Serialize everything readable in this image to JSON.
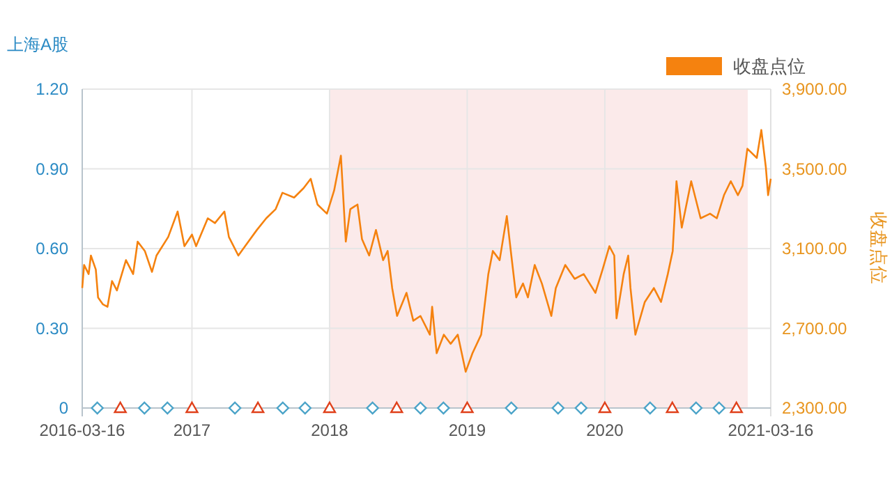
{
  "chart_data": {
    "type": "line",
    "ylabel": "上海A股",
    "y2label": "收盘点位",
    "xlim": [
      "2016-03-16",
      "2021-03-16"
    ],
    "xticks": [
      {
        "value": "2016-03-16",
        "label": "2016-03-16"
      },
      {
        "value": "2017-01-01",
        "label": "2017"
      },
      {
        "value": "2018-01-01",
        "label": "2018"
      },
      {
        "value": "2019-01-01",
        "label": "2019"
      },
      {
        "value": "2020-01-01",
        "label": "2020"
      },
      {
        "value": "2021-03-16",
        "label": "2021-03-16"
      }
    ],
    "ylim": [
      0,
      1.2
    ],
    "yticks": [
      0,
      {
        "value": 0.3,
        "label": "0.30"
      },
      {
        "value": 0.6,
        "label": "0.60"
      },
      {
        "value": 0.9,
        "label": "0.90"
      },
      {
        "value": 1.2,
        "label": "1.20"
      }
    ],
    "y2lim": [
      2300,
      3900
    ],
    "y2ticks": [
      {
        "value": 2300,
        "label": "2,300.00"
      },
      {
        "value": 2700,
        "label": "2,700.00"
      },
      {
        "value": 3100,
        "label": "3,100.00"
      },
      {
        "value": 3500,
        "label": "3,500.00"
      },
      {
        "value": 3900,
        "label": "3,900.00"
      }
    ],
    "grid": true,
    "legend": "top right",
    "bands": [
      {
        "axis": "x",
        "from": "2018-01-01",
        "to": "2021-01-14",
        "color": "#fbeaea"
      }
    ],
    "series": [
      {
        "name": "收盘点位",
        "axis": "y2",
        "color": "#f5820f",
        "marker": "none",
        "x": [
          "2016-03-16",
          "2016-03-21",
          "2016-04-02",
          "2016-04-08",
          "2016-04-21",
          "2016-04-27",
          "2016-05-10",
          "2016-05-22",
          "2016-06-03",
          "2016-06-16",
          "2016-07-10",
          "2016-07-29",
          "2016-08-10",
          "2016-08-29",
          "2016-09-17",
          "2016-09-29",
          "2016-10-30",
          "2016-11-24",
          "2016-12-12",
          "2017-01-01",
          "2017-01-12",
          "2017-02-12",
          "2017-03-03",
          "2017-03-28",
          "2017-04-09",
          "2017-05-04",
          "2017-05-22",
          "2017-06-22",
          "2017-07-17",
          "2017-08-11",
          "2017-08-29",
          "2017-09-29",
          "2017-10-24",
          "2017-11-12",
          "2017-11-30",
          "2017-12-25",
          "2018-01-13",
          "2018-01-31",
          "2018-02-13",
          "2018-02-25",
          "2018-03-16",
          "2018-03-28",
          "2018-04-16",
          "2018-05-04",
          "2018-05-23",
          "2018-06-04",
          "2018-06-16",
          "2018-06-29",
          "2018-07-24",
          "2018-08-11",
          "2018-08-30",
          "2018-09-24",
          "2018-09-30",
          "2018-10-12",
          "2018-10-31",
          "2018-11-18",
          "2018-12-07",
          "2018-12-28",
          "2019-01-15",
          "2019-02-07",
          "2019-02-26",
          "2019-03-10",
          "2019-03-28",
          "2019-04-16",
          "2019-04-28",
          "2019-05-11",
          "2019-05-29",
          "2019-06-11",
          "2019-06-29",
          "2019-07-18",
          "2019-08-12",
          "2019-08-24",
          "2019-09-18",
          "2019-10-13",
          "2019-11-06",
          "2019-12-07",
          "2019-12-26",
          "2020-01-13",
          "2020-01-26",
          "2020-02-01",
          "2020-02-20",
          "2020-03-03",
          "2020-03-09",
          "2020-03-22",
          "2020-04-16",
          "2020-05-10",
          "2020-05-29",
          "2020-06-16",
          "2020-06-29",
          "2020-07-09",
          "2020-07-23",
          "2020-08-17",
          "2020-09-11",
          "2020-10-06",
          "2020-10-24",
          "2020-11-12",
          "2020-11-30",
          "2020-12-19",
          "2020-12-31",
          "2021-01-13",
          "2021-02-07",
          "2021-02-19",
          "2021-03-03",
          "2021-03-09",
          "2021-03-16"
        ],
        "values": [
          2902,
          3018,
          2972,
          3065,
          2995,
          2855,
          2820,
          2808,
          2937,
          2890,
          3042,
          2972,
          3135,
          3088,
          2983,
          3065,
          3158,
          3286,
          3112,
          3170,
          3112,
          3252,
          3228,
          3286,
          3158,
          3065,
          3112,
          3193,
          3252,
          3298,
          3380,
          3356,
          3403,
          3450,
          3321,
          3275,
          3391,
          3566,
          3135,
          3298,
          3321,
          3147,
          3065,
          3193,
          3042,
          3088,
          2902,
          2762,
          2878,
          2738,
          2762,
          2668,
          2808,
          2575,
          2668,
          2622,
          2668,
          2482,
          2575,
          2668,
          2972,
          3088,
          3042,
          3263,
          3065,
          2855,
          2925,
          2855,
          3018,
          2925,
          2762,
          2902,
          3018,
          2948,
          2972,
          2878,
          2995,
          3112,
          3065,
          2750,
          2972,
          3065,
          2902,
          2668,
          2832,
          2902,
          2832,
          2972,
          3088,
          3438,
          3205,
          3438,
          3252,
          3275,
          3252,
          3368,
          3438,
          3368,
          3415,
          3601,
          3555,
          3695,
          3508,
          3368,
          3450
        ]
      },
      {
        "type": "scatter",
        "color": "#4aa3c8",
        "marker": "diamond",
        "x": [
          "2016-04-25",
          "2016-08-28",
          "2016-10-28",
          "2017-04-25",
          "2017-08-30",
          "2017-10-28",
          "2018-04-25",
          "2018-08-30",
          "2018-10-30",
          "2019-04-28",
          "2019-08-30",
          "2019-10-30",
          "2020-04-30",
          "2020-08-30",
          "2020-10-30"
        ],
        "values": [
          0,
          0,
          0,
          0,
          0,
          0,
          0,
          0,
          0,
          0,
          0,
          0,
          0,
          0,
          0
        ]
      },
      {
        "type": "scatter",
        "color": "#e0401a",
        "marker": "triangle",
        "x": [
          "2016-06-25",
          "2017-01-01",
          "2017-06-25",
          "2018-01-01",
          "2018-06-28",
          "2019-01-01",
          "2020-01-01",
          "2020-06-28",
          "2020-12-15"
        ],
        "values": [
          0,
          0,
          0,
          0,
          0,
          0,
          0,
          0,
          0
        ]
      }
    ]
  }
}
